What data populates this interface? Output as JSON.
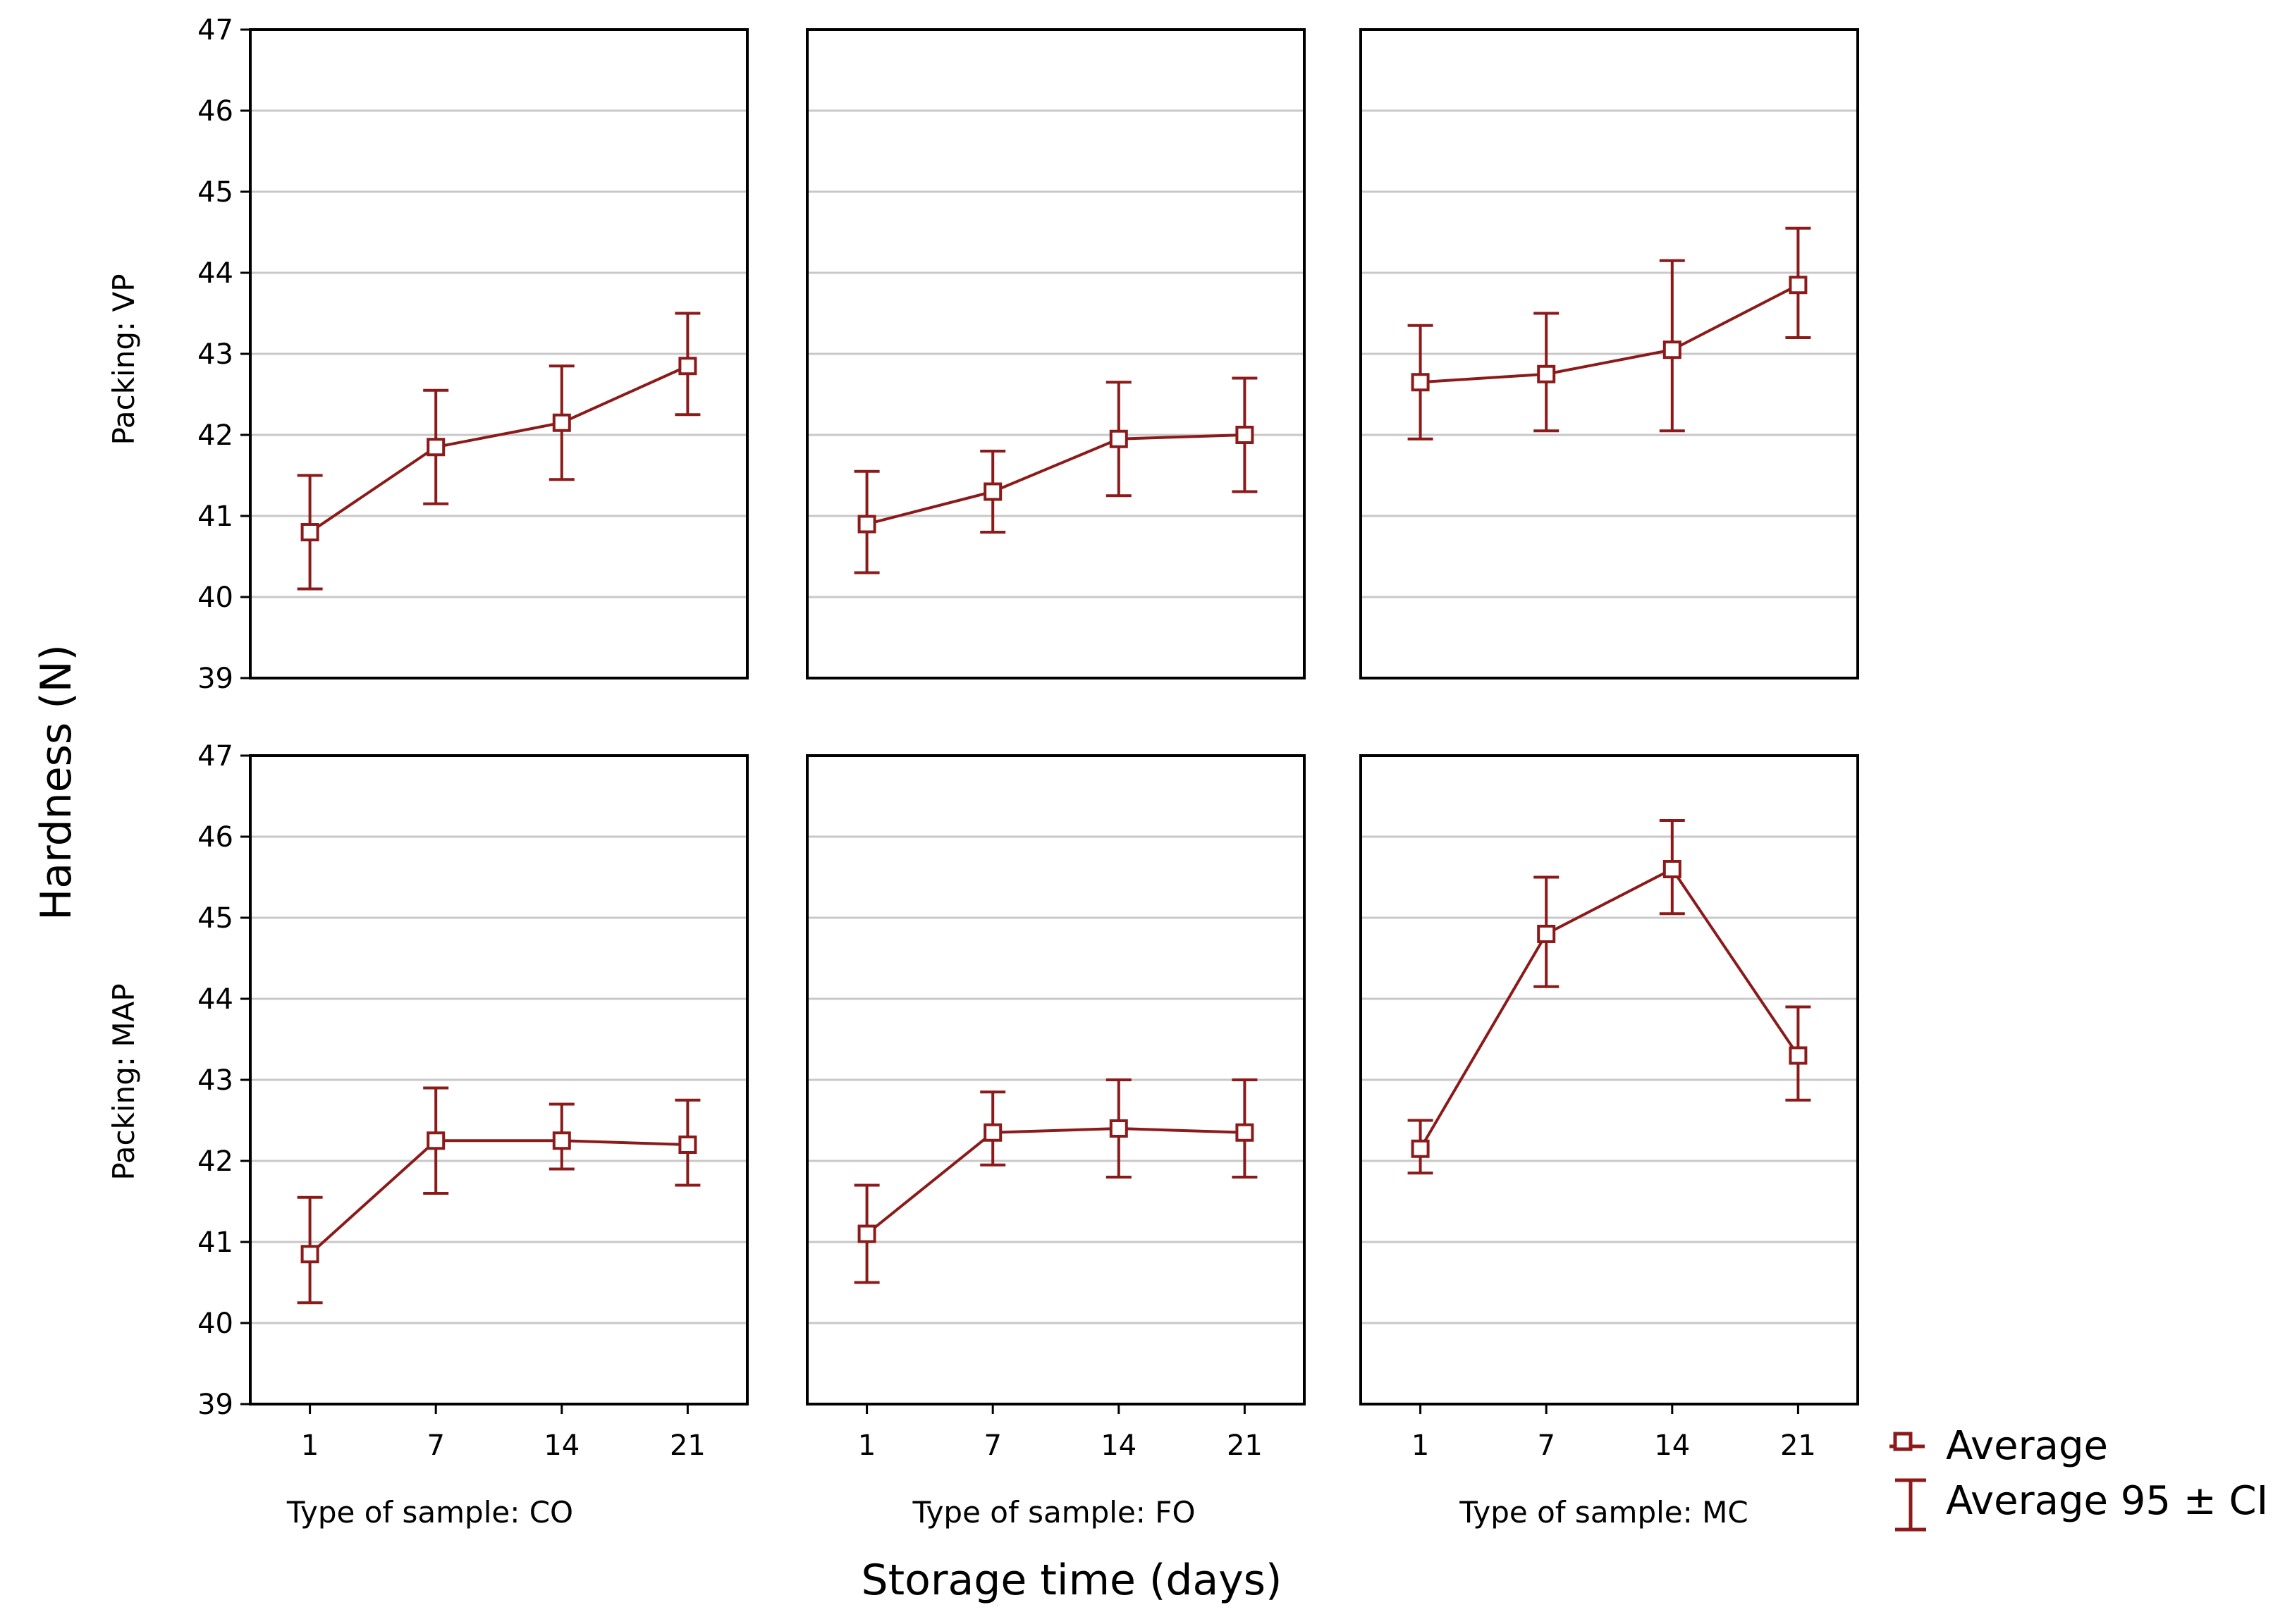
{
  "chart_data": {
    "type": "line",
    "xlabel": "Storage time (days)",
    "ylabel": "Hardness (N)",
    "ylim": [
      39,
      47
    ],
    "yticks": [
      39,
      40,
      41,
      42,
      43,
      44,
      45,
      46,
      47
    ],
    "x_categories": [
      "1",
      "7",
      "14",
      "21"
    ],
    "grid": "horizontal",
    "legend_position": "bottom-right",
    "legend": {
      "average": "Average",
      "ci": "Average 95 ± CI"
    },
    "colors": {
      "series": "#8B1A1A",
      "grid": "#c8c8c8"
    },
    "row_labels": [
      "Packing: VP",
      "Packing: MAP"
    ],
    "column_labels": [
      "Type of sample: CO",
      "Type of sample: FO",
      "Type of sample: MC"
    ],
    "panels": [
      {
        "packing": "VP",
        "sample": "CO",
        "mean": [
          40.8,
          41.85,
          42.15,
          42.85
        ],
        "ci_low": [
          40.1,
          41.15,
          41.45,
          42.25
        ],
        "ci_high": [
          41.5,
          42.55,
          42.85,
          43.5
        ]
      },
      {
        "packing": "VP",
        "sample": "FO",
        "mean": [
          40.9,
          41.3,
          41.95,
          42.0
        ],
        "ci_low": [
          40.3,
          40.8,
          41.25,
          41.3
        ],
        "ci_high": [
          41.55,
          41.8,
          42.65,
          42.7
        ]
      },
      {
        "packing": "VP",
        "sample": "MC",
        "mean": [
          42.65,
          42.75,
          43.05,
          43.85
        ],
        "ci_low": [
          41.95,
          42.05,
          42.05,
          43.2
        ],
        "ci_high": [
          43.35,
          43.5,
          44.15,
          44.55
        ]
      },
      {
        "packing": "MAP",
        "sample": "CO",
        "mean": [
          40.85,
          42.25,
          42.25,
          42.2
        ],
        "ci_low": [
          40.25,
          41.6,
          41.9,
          41.7
        ],
        "ci_high": [
          41.55,
          42.9,
          42.7,
          42.75
        ]
      },
      {
        "packing": "MAP",
        "sample": "FO",
        "mean": [
          41.1,
          42.35,
          42.4,
          42.35
        ],
        "ci_low": [
          40.5,
          41.95,
          41.8,
          41.8
        ],
        "ci_high": [
          41.7,
          42.85,
          43.0,
          43.0
        ]
      },
      {
        "packing": "MAP",
        "sample": "MC",
        "mean": [
          42.15,
          44.8,
          45.6,
          43.3
        ],
        "ci_low": [
          41.85,
          44.15,
          45.05,
          42.75
        ],
        "ci_high": [
          42.5,
          45.5,
          46.2,
          43.9
        ]
      }
    ]
  }
}
